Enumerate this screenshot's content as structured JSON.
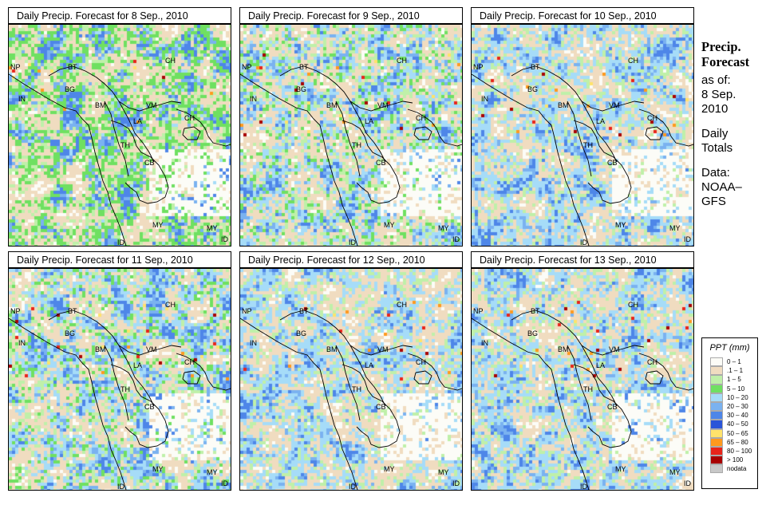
{
  "panels": [
    {
      "title": "Daily Precip. Forecast for  8 Sep., 2010",
      "seed": 11,
      "wet": 0.55,
      "hot": 0.01
    },
    {
      "title": "Daily Precip. Forecast for  9 Sep., 2010",
      "seed": 23,
      "wet": 0.5,
      "hot": 0.01
    },
    {
      "title": "Daily Precip. Forecast for  10 Sep., 2010",
      "seed": 37,
      "wet": 0.45,
      "hot": 0.014
    },
    {
      "title": "Daily Precip. Forecast for  11 Sep., 2010",
      "seed": 41,
      "wet": 0.5,
      "hot": 0.014
    },
    {
      "title": "Daily Precip. Forecast for  12 Sep., 2010",
      "seed": 59,
      "wet": 0.48,
      "hot": 0.012
    },
    {
      "title": "Daily Precip. Forecast for  13 Sep., 2010",
      "seed": 73,
      "wet": 0.46,
      "hot": 0.018
    }
  ],
  "region_labels": [
    "NP",
    "BT",
    "BG",
    "IN",
    "CH",
    "BM",
    "VM",
    "LA",
    "TH",
    "CB",
    "CH",
    "MY",
    "ID",
    "MY",
    "ID"
  ],
  "sidebar": {
    "title_line1": "Precip.",
    "title_line2": "Forecast",
    "asof_label": "as of:",
    "date_line1": "8 Sep.",
    "date_line2": "2010",
    "totals_line1": "Daily",
    "totals_line2": "Totals",
    "data_line1": "Data:",
    "data_line2": "NOAA–",
    "data_line3": "GFS"
  },
  "legend": {
    "title": "PPT (mm)",
    "items": [
      {
        "label": "0 – 1",
        "color": "#fcfcf7"
      },
      {
        "label": ".1 – 1",
        "color": "#f0dcc0"
      },
      {
        "label": "1 – 5",
        "color": "#bff0a9"
      },
      {
        "label": "5 – 10",
        "color": "#6fe061"
      },
      {
        "label": "10 – 20",
        "color": "#a6dcf8"
      },
      {
        "label": "20 – 30",
        "color": "#7ab2f0"
      },
      {
        "label": "30 – 40",
        "color": "#4e86e8"
      },
      {
        "label": "40 – 50",
        "color": "#2a55d8"
      },
      {
        "label": "50 – 65",
        "color": "#ffe36b"
      },
      {
        "label": "65 – 80",
        "color": "#ff9a1f"
      },
      {
        "label": "80 – 100",
        "color": "#e8241a"
      },
      {
        "label": "> 100",
        "color": "#a80000"
      },
      {
        "label": "nodata",
        "color": "#c8c8c8"
      }
    ]
  }
}
